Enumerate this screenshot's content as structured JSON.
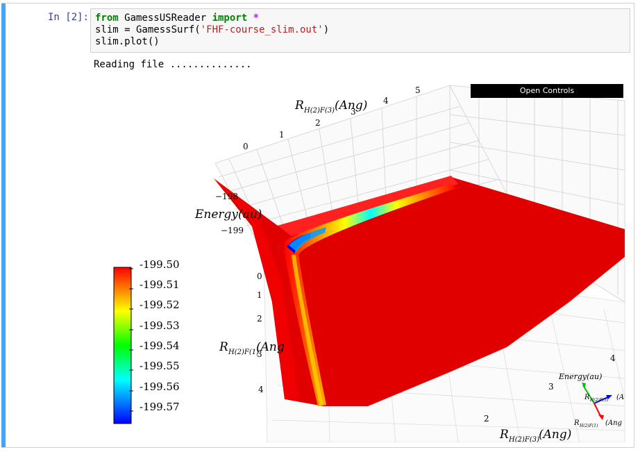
{
  "cell": {
    "prompt": "In [2]:",
    "code": {
      "line1": {
        "kw_from": "from",
        "module": " GamessUSReader ",
        "kw_import": "import",
        "star": " *"
      },
      "line2": {
        "pre": "slim = GamessSurf(",
        "string": "'FHF-course_slim.out'",
        "post": ")"
      },
      "line3": "slim.plot()"
    },
    "stdout": "Reading file .............."
  },
  "plot": {
    "controls_label": "Open Controls",
    "axes": {
      "y_label": "R_{H(2)F(3)}(Ang)",
      "y_label_sub": "H(2)F(3)",
      "y_label_r": "R",
      "y_label_unit": "(Ang)",
      "y_ticks": [
        "0",
        "1",
        "2",
        "3",
        "4",
        "5"
      ],
      "z_label": "Energy(au)",
      "z_ticks": [
        "−198",
        "−199"
      ],
      "x_label_r": "R",
      "x_label_sub": "H(2)F(1)",
      "x_label_unit": "(Ang",
      "x_ticks_left": [
        "0",
        "1",
        "2",
        "3",
        "4"
      ],
      "bottom_label_r": "R",
      "bottom_label_sub": "H(2)F(3)",
      "bottom_label_unit": "(Ang)",
      "bottom_ticks": [
        "2",
        "3",
        "4"
      ]
    },
    "triad": {
      "energy": "Energy(au)",
      "a_r": "R",
      "a_sub": "H(2)F(3)",
      "a_unit": "(A",
      "b_r": "R",
      "b_sub": "H(2)F(1)",
      "b_unit": "(Ang"
    },
    "colorbar": {
      "labels": [
        "-199.50",
        "-199.51",
        "-199.52",
        "-199.53",
        "-199.54",
        "-199.55",
        "-199.56",
        "-199.57"
      ],
      "colors": [
        "#ff0000",
        "#ff8000",
        "#ffff00",
        "#80ff00",
        "#00ff00",
        "#00ffff",
        "#0080ff",
        "#0000ff"
      ]
    },
    "surface_color": "#e00000"
  }
}
